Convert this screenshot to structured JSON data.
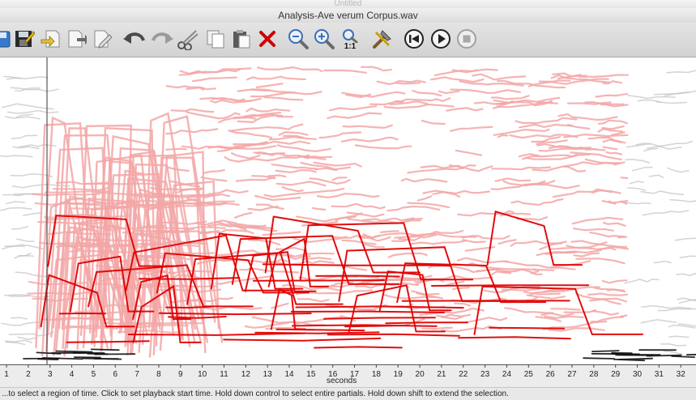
{
  "window": {
    "back_title": "Untitled",
    "title": "Analysis-Ave verum Corpus.wav"
  },
  "toolbar": {
    "buttons": [
      {
        "name": "save-icon"
      },
      {
        "name": "save-as-icon"
      },
      {
        "name": "export-icon"
      },
      {
        "name": "import-icon"
      },
      {
        "name": "edit-document-icon"
      },
      {
        "name": "undo-icon"
      },
      {
        "name": "redo-icon"
      },
      {
        "name": "cut-icon"
      },
      {
        "name": "copy-icon"
      },
      {
        "name": "paste-icon"
      },
      {
        "name": "delete-icon"
      },
      {
        "name": "zoom-out-icon"
      },
      {
        "name": "zoom-in-icon"
      },
      {
        "name": "zoom-actual-icon",
        "label": "1:1"
      },
      {
        "name": "tools-icon"
      },
      {
        "name": "rewind-icon"
      },
      {
        "name": "play-icon"
      },
      {
        "name": "stop-icon"
      }
    ]
  },
  "axis": {
    "label": "seconds",
    "ticks": [
      "1",
      "2",
      "3",
      "4",
      "5",
      "6",
      "7",
      "8",
      "9",
      "10",
      "11",
      "12",
      "13",
      "14",
      "15",
      "16",
      "17",
      "18",
      "19",
      "20",
      "21",
      "22",
      "23",
      "24",
      "25",
      "26",
      "27",
      "28",
      "29",
      "30",
      "31",
      "32"
    ],
    "xlim": [
      0.7,
      32.7
    ]
  },
  "colors": {
    "partials_light": "#f3a6a6",
    "partials_selected": "#e00000",
    "background_partials": "#c0c0c0"
  },
  "status": {
    "text": "...to select a region of time. Click to set playback start time. Hold down control to select entire partials. Hold down shift to extend the selection."
  }
}
